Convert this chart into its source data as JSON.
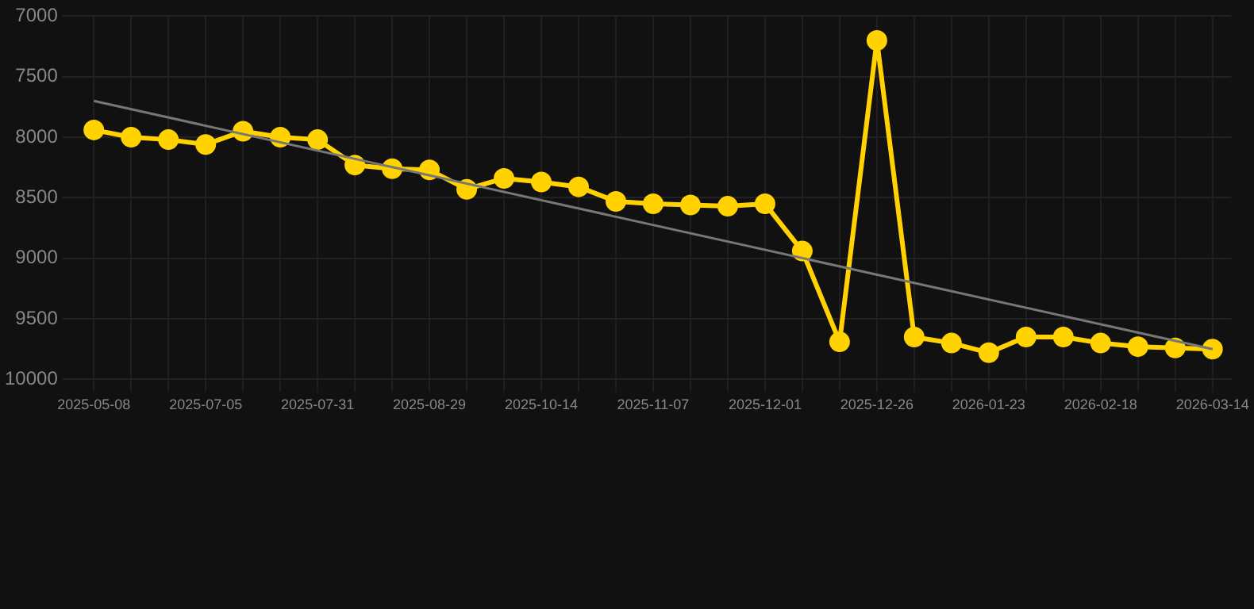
{
  "chart_data": {
    "type": "line",
    "categories": [
      "2025-05-08",
      null,
      null,
      "2025-07-05",
      null,
      null,
      "2025-07-31",
      null,
      null,
      "2025-08-29",
      null,
      null,
      "2025-10-14",
      null,
      null,
      "2025-11-07",
      null,
      null,
      "2025-12-01",
      null,
      null,
      "2025-12-26",
      null,
      null,
      "2026-01-23",
      null,
      null,
      "2026-02-18",
      null,
      null,
      "2026-03-14"
    ],
    "series": [
      {
        "type": "line",
        "color": "#ffd200",
        "marker": "circle",
        "values": [
          7940,
          8000,
          8020,
          8060,
          7950,
          8000,
          8020,
          8230,
          8260,
          8270,
          8430,
          8340,
          8370,
          8410,
          8530,
          8550,
          8560,
          8570,
          8550,
          8940,
          9690,
          7200,
          9650,
          9700,
          9780,
          9650,
          9650,
          9700,
          9730,
          9740,
          9750
        ]
      },
      {
        "type": "line",
        "color": "#777777",
        "marker": "none",
        "values": [
          7700,
          null,
          null,
          null,
          null,
          null,
          null,
          null,
          null,
          null,
          null,
          null,
          null,
          null,
          null,
          null,
          null,
          null,
          null,
          null,
          null,
          null,
          null,
          null,
          null,
          null,
          null,
          null,
          null,
          null,
          9750
        ]
      }
    ],
    "ylim": [
      10000,
      7000
    ],
    "yticks": [
      7000,
      7500,
      8000,
      8500,
      9000,
      9500,
      10000
    ],
    "grid": true,
    "legend": false
  }
}
